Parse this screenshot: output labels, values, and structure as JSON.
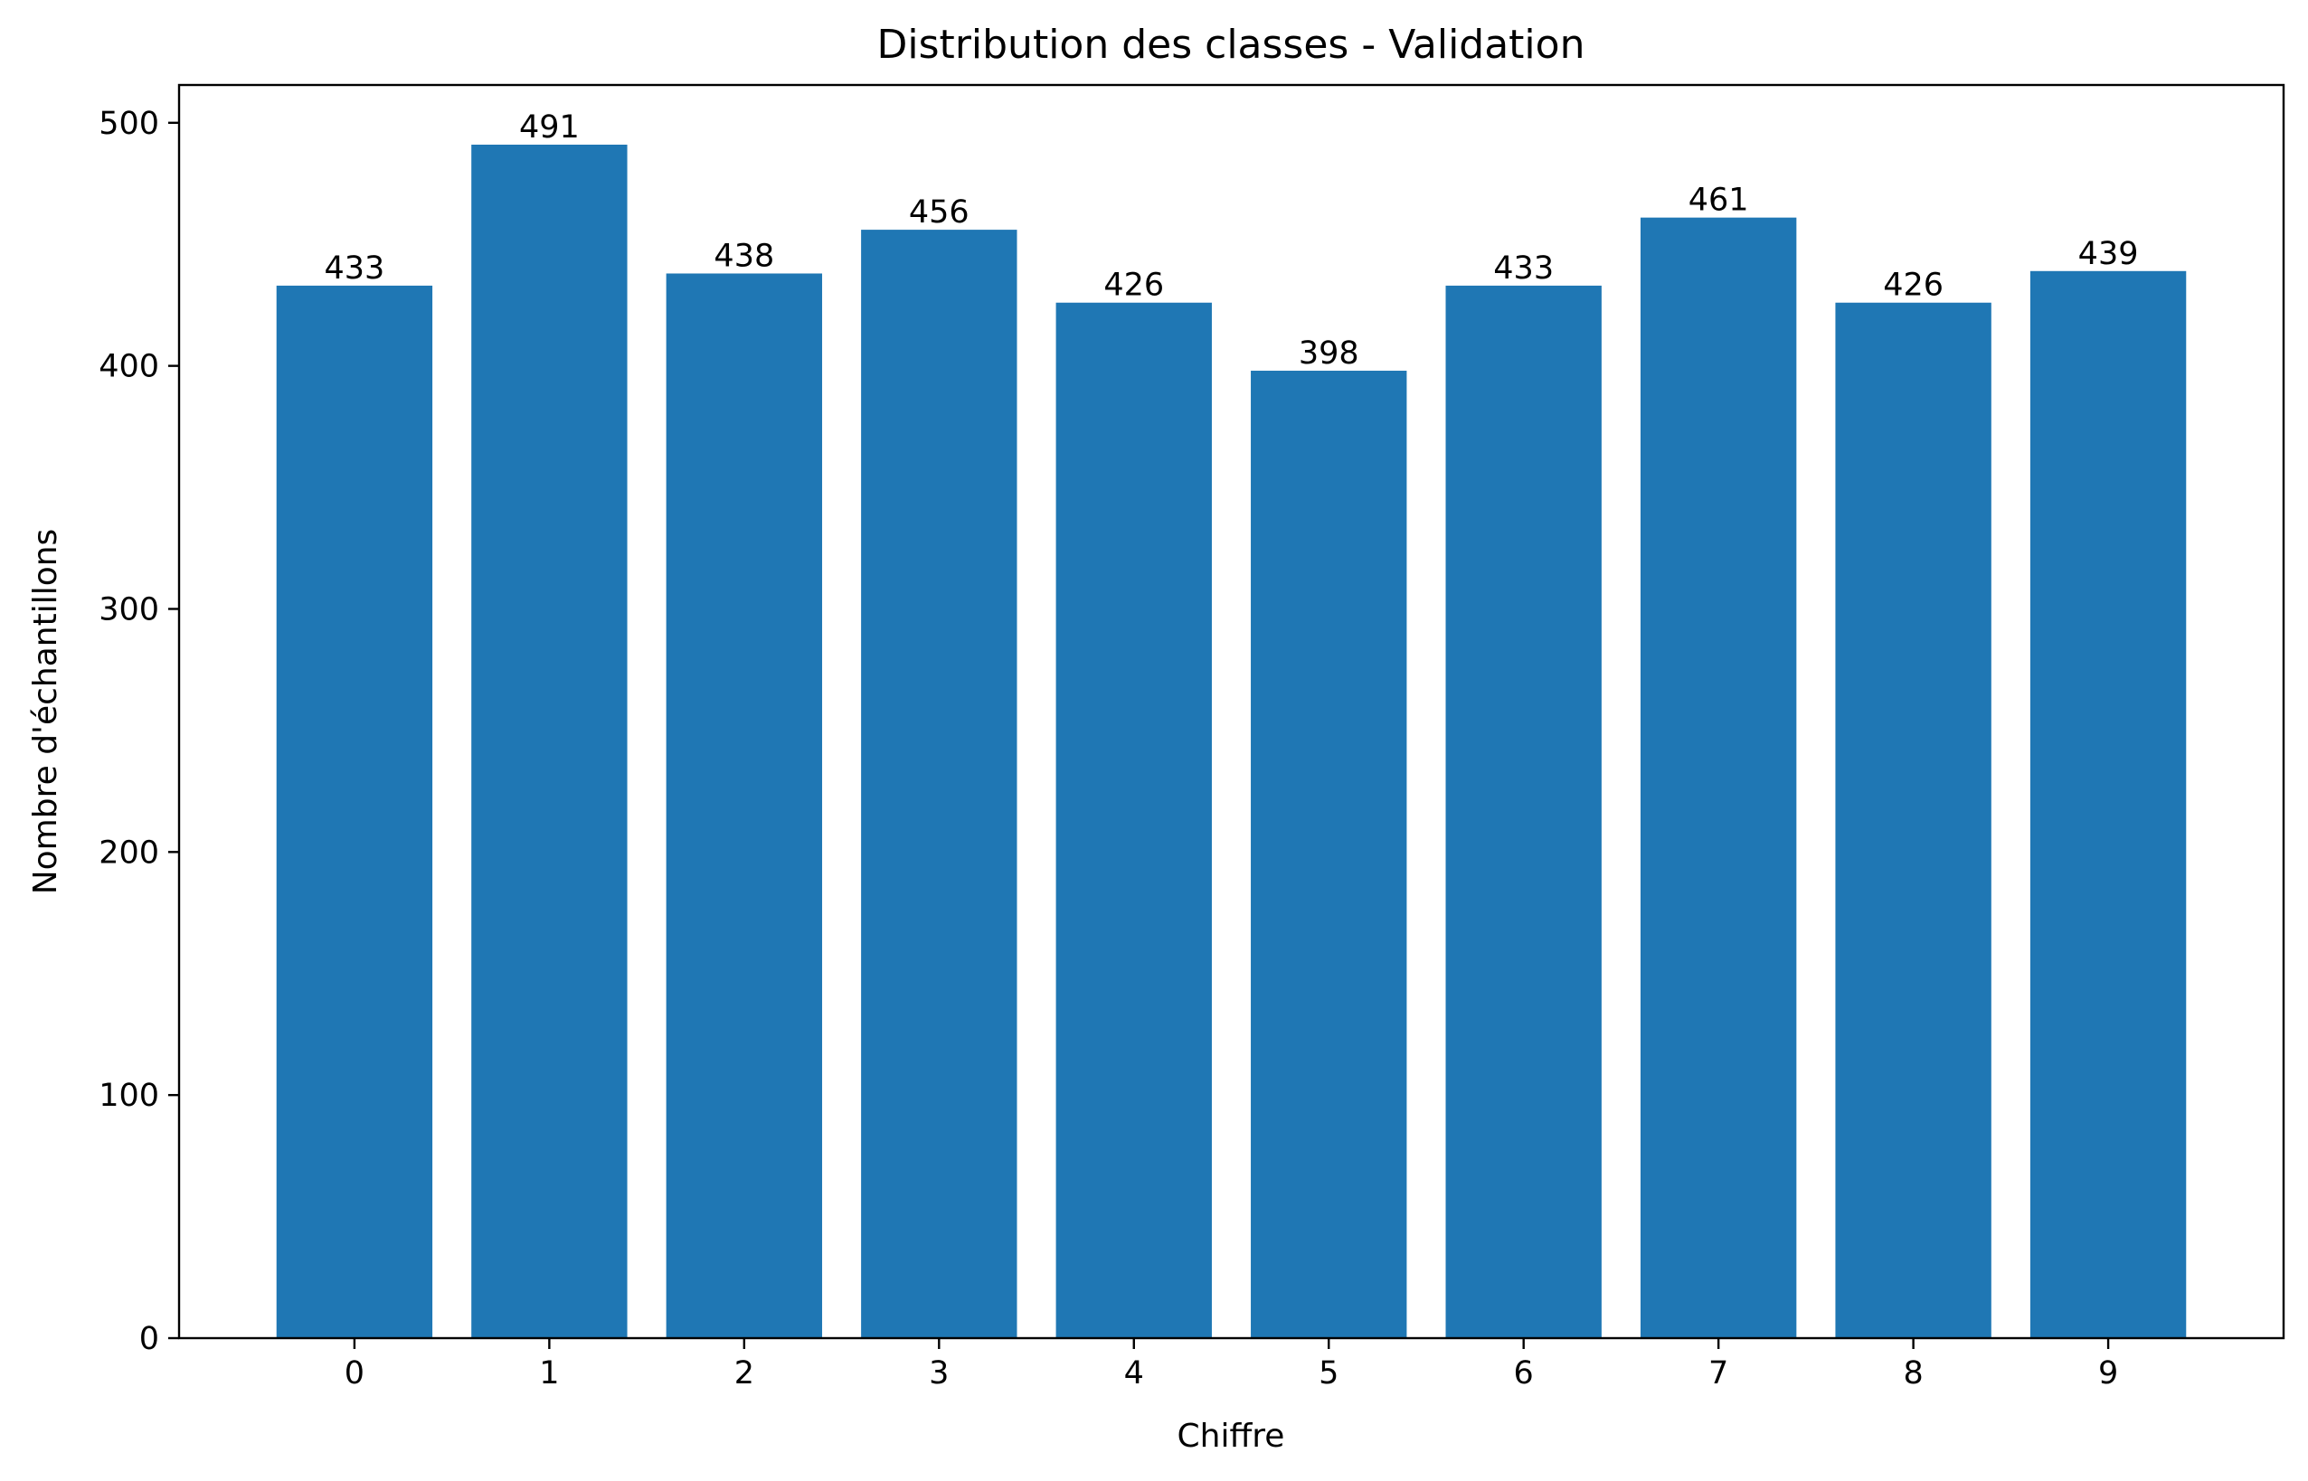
{
  "chart_data": {
    "type": "bar",
    "title": "Distribution des classes - Validation",
    "xlabel": "Chiffre",
    "ylabel": "Nombre d'échantillons",
    "categories": [
      "0",
      "1",
      "2",
      "3",
      "4",
      "5",
      "6",
      "7",
      "8",
      "9"
    ],
    "values": [
      433,
      491,
      438,
      456,
      426,
      398,
      433,
      461,
      426,
      439
    ],
    "ylim": [
      0,
      515.55
    ],
    "yticks": [
      0,
      100,
      200,
      300,
      400,
      500
    ],
    "grid": false,
    "legend": "none",
    "colors": {
      "bar": "#1f77b4"
    }
  }
}
